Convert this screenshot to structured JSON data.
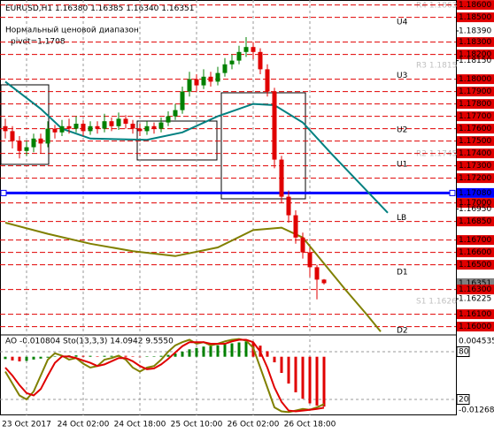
{
  "chart_data": [
    {
      "type": "candlestick",
      "symbol": "EURUSD,H1",
      "quote": [
        {
          "value": 1.1638,
          "label": "1.16380"
        },
        {
          "value": 1.16385,
          "label": "1.16385"
        },
        {
          "value": 1.1634,
          "label": "1.16340"
        },
        {
          "value": 1.16351,
          "label": "1.16351"
        }
      ],
      "subtitle": "Нормальный ценовой диапазон",
      "pivot_text": "pivot=1.1708",
      "faint_labels": [
        "R4 1.1863",
        "R3 1.1815",
        "R2 1.1745",
        "S1 1.1626"
      ],
      "xlim": [
        -0.75,
        63.625
      ],
      "xticks": [
        {
          "value": 3,
          "label": "23 Oct 2017"
        },
        {
          "value": 11,
          "label": "24 Oct 02:00"
        },
        {
          "value": 19,
          "label": "24 Oct 18:00"
        },
        {
          "value": 27,
          "label": "25 Oct 10:00"
        },
        {
          "value": 35,
          "label": "26 Oct 02:00"
        },
        {
          "value": 43,
          "label": "26 Oct 18:00"
        }
      ],
      "ylim": [
        1.1594,
        1.1864
      ],
      "yticks": [
        {
          "value": 1.186,
          "label": "1.18600"
        },
        {
          "value": 1.185,
          "label": "1.18500"
        },
        {
          "value": 1.1839,
          "label": "1.18390"
        },
        {
          "value": 1.183,
          "label": "1.18300"
        },
        {
          "value": 1.182,
          "label": "1.18200"
        },
        {
          "value": 1.1815,
          "label": "1.18150"
        },
        {
          "value": 1.18,
          "label": "1.18000"
        },
        {
          "value": 1.179,
          "label": "1.17900"
        },
        {
          "value": 1.178,
          "label": "1.17800"
        },
        {
          "value": 1.177,
          "label": "1.17700"
        },
        {
          "value": 1.176,
          "label": "1.17600"
        },
        {
          "value": 1.175,
          "label": "1.17500"
        },
        {
          "value": 1.174,
          "label": "1.17400"
        },
        {
          "value": 1.173,
          "label": "1.17300"
        },
        {
          "value": 1.172,
          "label": "1.17200"
        },
        {
          "value": 1.1708,
          "label": "1.17080"
        },
        {
          "value": 1.17,
          "label": "1.17000"
        },
        {
          "value": 1.1695,
          "label": "1.16950"
        },
        {
          "value": 1.1685,
          "label": "1.16850"
        },
        {
          "value": 1.167,
          "label": "1.16700"
        },
        {
          "value": 1.166,
          "label": "1.16600"
        },
        {
          "value": 1.165,
          "label": "1.16500"
        },
        {
          "value": 1.16351,
          "label": "1.16351"
        },
        {
          "value": 1.163,
          "label": "1.16300"
        },
        {
          "value": 1.16225,
          "label": "1.16225"
        },
        {
          "value": 1.161,
          "label": "1.16100"
        },
        {
          "value": 1.16,
          "label": "1.16000"
        }
      ],
      "levels": [
        1.186,
        1.185,
        1.183,
        1.182,
        1.18,
        1.179,
        1.178,
        1.177,
        1.176,
        1.175,
        1.174,
        1.173,
        1.172,
        1.17,
        1.1685,
        1.167,
        1.166,
        1.165,
        1.163,
        1.161,
        1.16
      ],
      "level_color": "#e00000",
      "pivot": 1.1708,
      "pivot_color": "#0000ff",
      "last_price": 1.16351,
      "pivot_lines": [
        {
          "name": "U4",
          "value": 1.1846
        },
        {
          "name": "U3",
          "value": 1.1803
        },
        {
          "name": "U2",
          "value": 1.1759
        },
        {
          "name": "U1",
          "value": 1.1731
        },
        {
          "name": "LB",
          "value": 1.1688
        },
        {
          "name": "D1",
          "value": 1.1644
        },
        {
          "name": "D2",
          "value": 1.1597
        }
      ],
      "up_color": "#008000",
      "down_color": "#e00000",
      "open": [
        1.1762,
        1.1758,
        1.175,
        1.1742,
        1.1745,
        1.1752,
        1.1748,
        1.176,
        1.1757,
        1.1762,
        1.176,
        1.1764,
        1.1758,
        1.1762,
        1.176,
        1.1766,
        1.1762,
        1.1768,
        1.1764,
        1.176,
        1.1758,
        1.1762,
        1.176,
        1.1765,
        1.177,
        1.1775,
        1.179,
        1.18,
        1.1795,
        1.1802,
        1.1798,
        1.1805,
        1.1812,
        1.1815,
        1.1822,
        1.1826,
        1.1822,
        1.1808,
        1.179,
        1.1735,
        1.1705,
        1.169,
        1.1672,
        1.166,
        1.1648,
        1.1638
      ],
      "high": [
        1.1768,
        1.1762,
        1.1754,
        1.175,
        1.1756,
        1.1756,
        1.1766,
        1.1763,
        1.1767,
        1.1768,
        1.177,
        1.1767,
        1.1766,
        1.1766,
        1.1772,
        1.1769,
        1.1773,
        1.1771,
        1.1767,
        1.1764,
        1.1766,
        1.1765,
        1.1769,
        1.1774,
        1.178,
        1.1794,
        1.1806,
        1.1804,
        1.1808,
        1.1806,
        1.181,
        1.1817,
        1.182,
        1.1827,
        1.1834,
        1.183,
        1.1825,
        1.1812,
        1.1793,
        1.1738,
        1.171,
        1.1694,
        1.1676,
        1.1664,
        1.165,
        1.16385
      ],
      "low": [
        1.1752,
        1.1744,
        1.1736,
        1.1738,
        1.1741,
        1.174,
        1.1745,
        1.1752,
        1.1754,
        1.1756,
        1.1757,
        1.1754,
        1.1755,
        1.1756,
        1.1757,
        1.1758,
        1.1759,
        1.176,
        1.1756,
        1.1754,
        1.1755,
        1.1756,
        1.1757,
        1.1762,
        1.1767,
        1.1772,
        1.1786,
        1.179,
        1.1792,
        1.1794,
        1.1795,
        1.1802,
        1.1808,
        1.1812,
        1.1818,
        1.1816,
        1.1804,
        1.1786,
        1.1728,
        1.17,
        1.1684,
        1.1667,
        1.1655,
        1.164,
        1.1622,
        1.1634
      ],
      "close": [
        1.1758,
        1.175,
        1.1742,
        1.1745,
        1.1752,
        1.1748,
        1.176,
        1.1757,
        1.1762,
        1.176,
        1.1764,
        1.1758,
        1.1762,
        1.176,
        1.1766,
        1.1762,
        1.1768,
        1.1764,
        1.176,
        1.1758,
        1.1762,
        1.176,
        1.1765,
        1.177,
        1.1775,
        1.179,
        1.18,
        1.1795,
        1.1802,
        1.1798,
        1.1805,
        1.1812,
        1.1815,
        1.1822,
        1.1826,
        1.1822,
        1.1808,
        1.179,
        1.1735,
        1.1705,
        1.169,
        1.1672,
        1.166,
        1.1648,
        1.1638,
        1.16351
      ],
      "series": [
        {
          "color": "#008080",
          "x": [
            0,
            5,
            8,
            12,
            20,
            25,
            30,
            35,
            38,
            42,
            46,
            50,
            54
          ],
          "values": [
            1.1798,
            1.1776,
            1.176,
            1.1752,
            1.1751,
            1.1757,
            1.177,
            1.178,
            1.1779,
            1.1765,
            1.174,
            1.1716,
            1.1692
          ]
        },
        {
          "color": "#808000",
          "x": [
            0,
            6,
            12,
            18,
            24,
            30,
            35,
            39,
            42,
            45,
            48,
            51,
            53
          ],
          "values": [
            1.1684,
            1.1675,
            1.1667,
            1.1661,
            1.1657,
            1.1664,
            1.1678,
            1.168,
            1.1672,
            1.1651,
            1.163,
            1.161,
            1.1596
          ]
        }
      ]
    },
    {
      "type": "oscillator",
      "title": "AO -0.010804  Sto(13,3,3) 14.0942 9.5550",
      "xlim": [
        -0.75,
        63.625
      ],
      "ylim": [
        -0.012685,
        0.004535
      ],
      "yticks": [
        0.004535,
        -0.012685
      ],
      "y2lim": [
        0,
        100
      ],
      "y2ticks": [
        80,
        20
      ],
      "up_color": "#008000",
      "down_color": "#e00000",
      "values": [
        -0.0005,
        -0.0008,
        -0.001,
        -0.0009,
        -0.0006,
        -0.0004,
        -0.0002,
        0.0001,
        0.0002,
        0.0003,
        0.0003,
        0.0002,
        0.0002,
        0.0001,
        0.0002,
        0.0002,
        0.0003,
        0.0002,
        0.0001,
        0,
        0.0001,
        0.0001,
        0.0002,
        0.0004,
        0.0007,
        0.0011,
        0.0016,
        0.0019,
        0.0022,
        0.0023,
        0.0025,
        0.0027,
        0.0029,
        0.0031,
        0.0033,
        0.0031,
        0.0024,
        0.0012,
        -0.0012,
        -0.0035,
        -0.0058,
        -0.0077,
        -0.0091,
        -0.0101,
        -0.0106,
        -0.010804
      ],
      "series": [
        {
          "color": "#808000",
          "axis": "y2",
          "values": [
            55,
            40,
            25,
            20,
            30,
            50,
            70,
            78,
            75,
            70,
            72,
            65,
            60,
            62,
            70,
            72,
            75,
            70,
            60,
            55,
            60,
            62,
            70,
            80,
            88,
            92,
            95,
            90,
            92,
            88,
            90,
            93,
            95,
            96,
            94,
            85,
            60,
            35,
            10,
            5,
            4,
            6,
            8,
            7,
            10,
            14.0942
          ]
        },
        {
          "color": "#e00000",
          "axis": "y2",
          "values": [
            60,
            50,
            38,
            28,
            25,
            33,
            50,
            66,
            74,
            74,
            72,
            69,
            66,
            62,
            64,
            68,
            72,
            72,
            68,
            62,
            58,
            59,
            64,
            71,
            79,
            87,
            92,
            92,
            92,
            90,
            90,
            90,
            93,
            95,
            95,
            92,
            80,
            60,
            35,
            17,
            6,
            5,
            6,
            7,
            8,
            9.555
          ]
        }
      ]
    }
  ]
}
